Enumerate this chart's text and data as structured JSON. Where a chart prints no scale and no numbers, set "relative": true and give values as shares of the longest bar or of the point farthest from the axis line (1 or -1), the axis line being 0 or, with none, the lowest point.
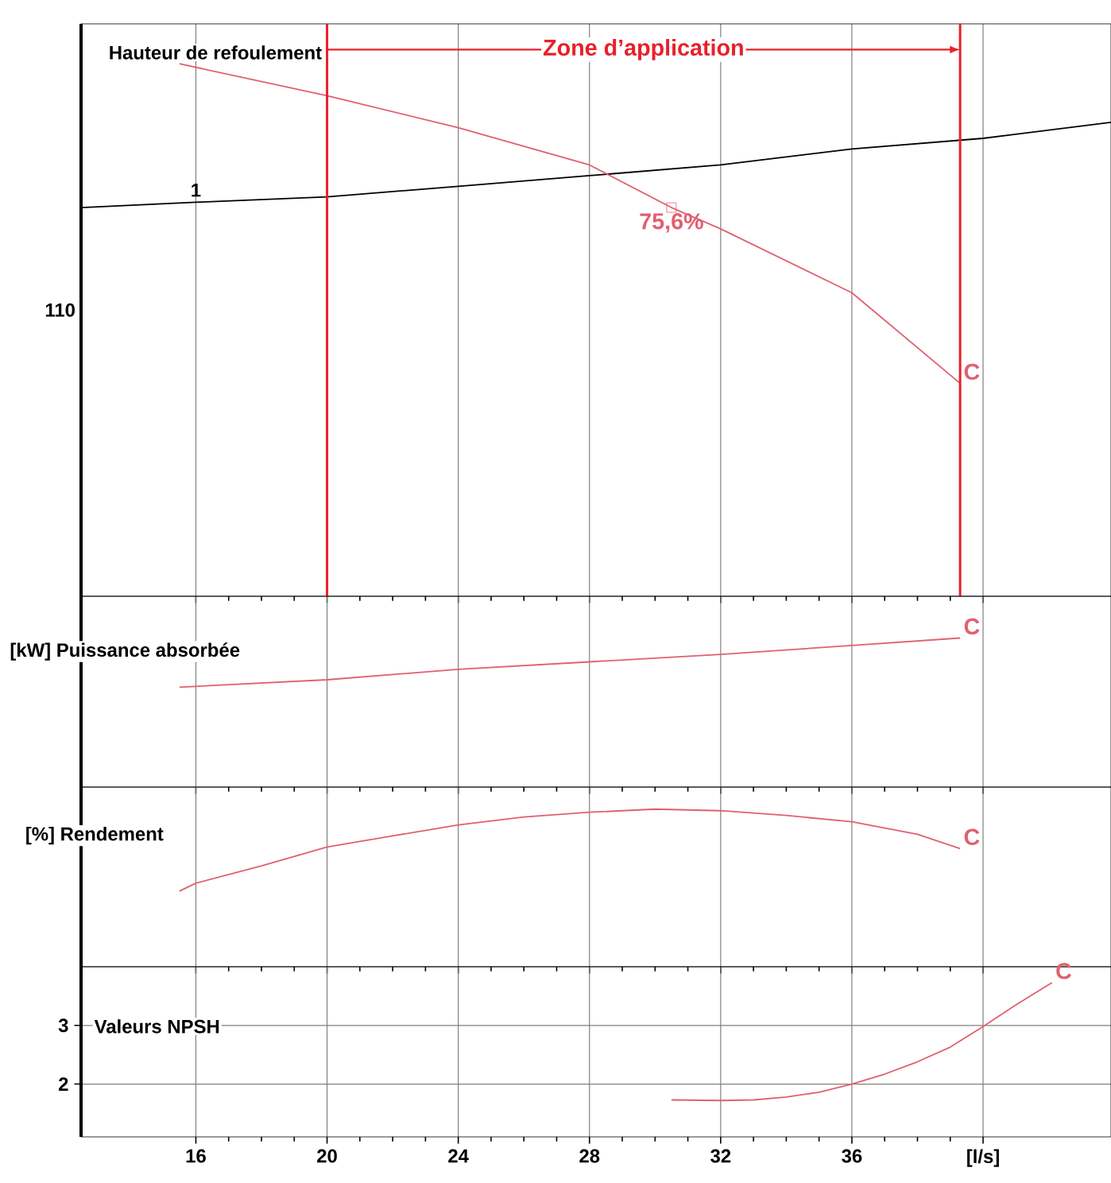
{
  "chart_data": [
    {
      "type": "line",
      "title": "Hauteur de refoulement",
      "relative": true,
      "xlim": [
        12.5,
        43.9
      ],
      "xticks": [
        16,
        20,
        24,
        28,
        32,
        36,
        40
      ],
      "tick_labels": false,
      "grid": "x",
      "series": [
        {
          "name": "1",
          "color": "#000000",
          "x": [
            12.5,
            16,
            20,
            24,
            28,
            32,
            36,
            40,
            43.9
          ],
          "values": [
            0.73,
            0.74,
            0.75,
            0.77,
            0.79,
            0.81,
            0.84,
            0.86,
            0.89
          ]
        },
        {
          "color": "#e06070",
          "x": [
            15.5,
            20,
            24,
            28,
            30.5,
            32,
            36,
            39.3
          ],
          "values": [
            1,
            0.94,
            0.88,
            0.81,
            0.73,
            0.69,
            0.57,
            0.4
          ]
        }
      ],
      "ref_lines": [
        {
          "axis": "x",
          "value": 20,
          "label": "Zone d’application",
          "color": "#e8202a"
        },
        {
          "axis": "x",
          "value": 39.3,
          "color": "#e8202a"
        }
      ],
      "annotations": [
        "110",
        {
          "text": "75,6%",
          "x": 30.5,
          "y": 0.73
        },
        {
          "text": "C",
          "x": 39.3,
          "y": 0.4
        }
      ]
    },
    {
      "type": "line",
      "title": "[kW] Puissance absorbée",
      "relative": true,
      "xlim": [
        12.5,
        43.9
      ],
      "xticks": [
        16,
        20,
        24,
        28,
        32,
        36,
        40
      ],
      "tick_labels": false,
      "grid": "x",
      "series": [
        {
          "color": "#e06070",
          "x": [
            15.5,
            20,
            24,
            28,
            32,
            36,
            39.3
          ],
          "values": [
            0.67,
            0.72,
            0.79,
            0.84,
            0.89,
            0.95,
            1
          ]
        }
      ],
      "annotations": [
        {
          "text": "C",
          "x": 39.3,
          "y": 1
        }
      ]
    },
    {
      "type": "line",
      "title": "[%] Rendement",
      "relative": true,
      "xlim": [
        12.5,
        43.9
      ],
      "xticks": [
        16,
        20,
        24,
        28,
        32,
        36,
        40
      ],
      "tick_labels": false,
      "grid": "x",
      "series": [
        {
          "color": "#e06070",
          "x": [
            15.5,
            16,
            18,
            20,
            22,
            24,
            26,
            28,
            30,
            32,
            34,
            36,
            38,
            39.3
          ],
          "values": [
            0.48,
            0.53,
            0.64,
            0.76,
            0.83,
            0.9,
            0.95,
            0.98,
            1,
            0.99,
            0.96,
            0.92,
            0.84,
            0.75
          ]
        }
      ],
      "annotations": [
        {
          "text": "C",
          "x": 39.3,
          "y": 0.75
        }
      ]
    },
    {
      "type": "line",
      "title": "Valeurs NPSH",
      "xlim": [
        12.5,
        43.9
      ],
      "xticks": [
        16,
        20,
        24,
        28,
        32,
        36,
        {
          "value": 40,
          "label": "[l/s]"
        }
      ],
      "ylim": [
        1.1,
        4.0
      ],
      "yticks": [
        2,
        3
      ],
      "grid": true,
      "series": [
        {
          "color": "#e06070",
          "x": [
            30.5,
            32,
            33,
            34,
            35,
            36,
            37,
            38,
            39,
            40,
            41,
            42.1
          ],
          "values": [
            1.73,
            1.72,
            1.73,
            1.78,
            1.86,
            2.0,
            2.17,
            2.38,
            2.63,
            2.98,
            3.35,
            3.73
          ]
        }
      ],
      "annotations": [
        {
          "text": "C",
          "x": 42.1,
          "y": 3.73
        }
      ]
    }
  ]
}
